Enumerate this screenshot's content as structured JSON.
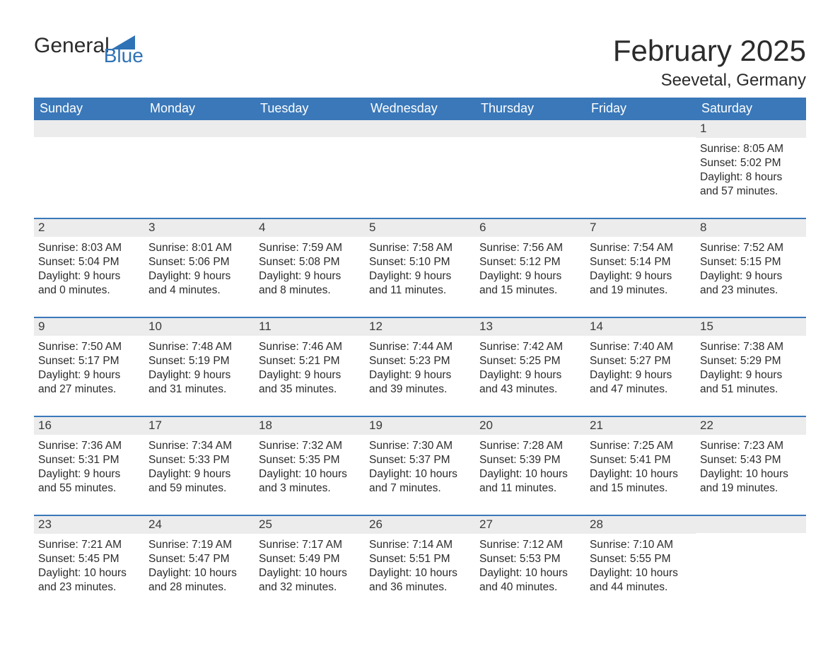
{
  "logo": {
    "word1": "General",
    "word2": "Blue",
    "triangle_color": "#2f73b6"
  },
  "header": {
    "month_title": "February 2025",
    "location": "Seevetal, Germany"
  },
  "colors": {
    "header_bg": "#3a78b9",
    "band_bg": "#ececec",
    "text": "#2b2b2b",
    "brand_blue": "#2f73b6",
    "page_bg": "#ffffff"
  },
  "typography": {
    "month_title_fontsize": 42,
    "location_fontsize": 24,
    "day_header_fontsize": 18,
    "date_fontsize": 17,
    "info_fontsize": 15.5
  },
  "day_names": [
    "Sunday",
    "Monday",
    "Tuesday",
    "Wednesday",
    "Thursday",
    "Friday",
    "Saturday"
  ],
  "weeks": [
    [
      {
        "empty": true
      },
      {
        "empty": true
      },
      {
        "empty": true
      },
      {
        "empty": true
      },
      {
        "empty": true
      },
      {
        "empty": true
      },
      {
        "date": "1",
        "sunrise": "Sunrise: 8:05 AM",
        "sunset": "Sunset: 5:02 PM",
        "daylight1": "Daylight: 8 hours",
        "daylight2": "and 57 minutes."
      }
    ],
    [
      {
        "date": "2",
        "sunrise": "Sunrise: 8:03 AM",
        "sunset": "Sunset: 5:04 PM",
        "daylight1": "Daylight: 9 hours",
        "daylight2": "and 0 minutes."
      },
      {
        "date": "3",
        "sunrise": "Sunrise: 8:01 AM",
        "sunset": "Sunset: 5:06 PM",
        "daylight1": "Daylight: 9 hours",
        "daylight2": "and 4 minutes."
      },
      {
        "date": "4",
        "sunrise": "Sunrise: 7:59 AM",
        "sunset": "Sunset: 5:08 PM",
        "daylight1": "Daylight: 9 hours",
        "daylight2": "and 8 minutes."
      },
      {
        "date": "5",
        "sunrise": "Sunrise: 7:58 AM",
        "sunset": "Sunset: 5:10 PM",
        "daylight1": "Daylight: 9 hours",
        "daylight2": "and 11 minutes."
      },
      {
        "date": "6",
        "sunrise": "Sunrise: 7:56 AM",
        "sunset": "Sunset: 5:12 PM",
        "daylight1": "Daylight: 9 hours",
        "daylight2": "and 15 minutes."
      },
      {
        "date": "7",
        "sunrise": "Sunrise: 7:54 AM",
        "sunset": "Sunset: 5:14 PM",
        "daylight1": "Daylight: 9 hours",
        "daylight2": "and 19 minutes."
      },
      {
        "date": "8",
        "sunrise": "Sunrise: 7:52 AM",
        "sunset": "Sunset: 5:15 PM",
        "daylight1": "Daylight: 9 hours",
        "daylight2": "and 23 minutes."
      }
    ],
    [
      {
        "date": "9",
        "sunrise": "Sunrise: 7:50 AM",
        "sunset": "Sunset: 5:17 PM",
        "daylight1": "Daylight: 9 hours",
        "daylight2": "and 27 minutes."
      },
      {
        "date": "10",
        "sunrise": "Sunrise: 7:48 AM",
        "sunset": "Sunset: 5:19 PM",
        "daylight1": "Daylight: 9 hours",
        "daylight2": "and 31 minutes."
      },
      {
        "date": "11",
        "sunrise": "Sunrise: 7:46 AM",
        "sunset": "Sunset: 5:21 PM",
        "daylight1": "Daylight: 9 hours",
        "daylight2": "and 35 minutes."
      },
      {
        "date": "12",
        "sunrise": "Sunrise: 7:44 AM",
        "sunset": "Sunset: 5:23 PM",
        "daylight1": "Daylight: 9 hours",
        "daylight2": "and 39 minutes."
      },
      {
        "date": "13",
        "sunrise": "Sunrise: 7:42 AM",
        "sunset": "Sunset: 5:25 PM",
        "daylight1": "Daylight: 9 hours",
        "daylight2": "and 43 minutes."
      },
      {
        "date": "14",
        "sunrise": "Sunrise: 7:40 AM",
        "sunset": "Sunset: 5:27 PM",
        "daylight1": "Daylight: 9 hours",
        "daylight2": "and 47 minutes."
      },
      {
        "date": "15",
        "sunrise": "Sunrise: 7:38 AM",
        "sunset": "Sunset: 5:29 PM",
        "daylight1": "Daylight: 9 hours",
        "daylight2": "and 51 minutes."
      }
    ],
    [
      {
        "date": "16",
        "sunrise": "Sunrise: 7:36 AM",
        "sunset": "Sunset: 5:31 PM",
        "daylight1": "Daylight: 9 hours",
        "daylight2": "and 55 minutes."
      },
      {
        "date": "17",
        "sunrise": "Sunrise: 7:34 AM",
        "sunset": "Sunset: 5:33 PM",
        "daylight1": "Daylight: 9 hours",
        "daylight2": "and 59 minutes."
      },
      {
        "date": "18",
        "sunrise": "Sunrise: 7:32 AM",
        "sunset": "Sunset: 5:35 PM",
        "daylight1": "Daylight: 10 hours",
        "daylight2": "and 3 minutes."
      },
      {
        "date": "19",
        "sunrise": "Sunrise: 7:30 AM",
        "sunset": "Sunset: 5:37 PM",
        "daylight1": "Daylight: 10 hours",
        "daylight2": "and 7 minutes."
      },
      {
        "date": "20",
        "sunrise": "Sunrise: 7:28 AM",
        "sunset": "Sunset: 5:39 PM",
        "daylight1": "Daylight: 10 hours",
        "daylight2": "and 11 minutes."
      },
      {
        "date": "21",
        "sunrise": "Sunrise: 7:25 AM",
        "sunset": "Sunset: 5:41 PM",
        "daylight1": "Daylight: 10 hours",
        "daylight2": "and 15 minutes."
      },
      {
        "date": "22",
        "sunrise": "Sunrise: 7:23 AM",
        "sunset": "Sunset: 5:43 PM",
        "daylight1": "Daylight: 10 hours",
        "daylight2": "and 19 minutes."
      }
    ],
    [
      {
        "date": "23",
        "sunrise": "Sunrise: 7:21 AM",
        "sunset": "Sunset: 5:45 PM",
        "daylight1": "Daylight: 10 hours",
        "daylight2": "and 23 minutes."
      },
      {
        "date": "24",
        "sunrise": "Sunrise: 7:19 AM",
        "sunset": "Sunset: 5:47 PM",
        "daylight1": "Daylight: 10 hours",
        "daylight2": "and 28 minutes."
      },
      {
        "date": "25",
        "sunrise": "Sunrise: 7:17 AM",
        "sunset": "Sunset: 5:49 PM",
        "daylight1": "Daylight: 10 hours",
        "daylight2": "and 32 minutes."
      },
      {
        "date": "26",
        "sunrise": "Sunrise: 7:14 AM",
        "sunset": "Sunset: 5:51 PM",
        "daylight1": "Daylight: 10 hours",
        "daylight2": "and 36 minutes."
      },
      {
        "date": "27",
        "sunrise": "Sunrise: 7:12 AM",
        "sunset": "Sunset: 5:53 PM",
        "daylight1": "Daylight: 10 hours",
        "daylight2": "and 40 minutes."
      },
      {
        "date": "28",
        "sunrise": "Sunrise: 7:10 AM",
        "sunset": "Sunset: 5:55 PM",
        "daylight1": "Daylight: 10 hours",
        "daylight2": "and 44 minutes."
      },
      {
        "empty": true
      }
    ]
  ]
}
